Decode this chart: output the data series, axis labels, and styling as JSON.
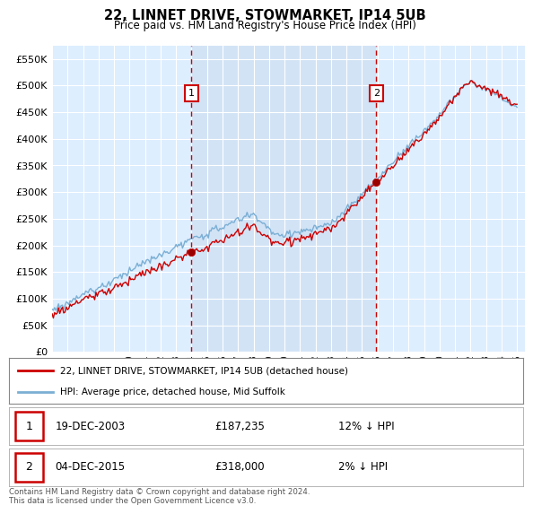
{
  "title": "22, LINNET DRIVE, STOWMARKET, IP14 5UB",
  "subtitle": "Price paid vs. HM Land Registry's House Price Index (HPI)",
  "ylim": [
    0,
    575000
  ],
  "yticks": [
    0,
    50000,
    100000,
    150000,
    200000,
    250000,
    300000,
    350000,
    400000,
    450000,
    500000,
    550000
  ],
  "ytick_labels": [
    "£0",
    "£50K",
    "£100K",
    "£150K",
    "£200K",
    "£250K",
    "£300K",
    "£350K",
    "£400K",
    "£450K",
    "£500K",
    "£550K"
  ],
  "sale1_date": 2004.0,
  "sale1_price": 187235,
  "sale1_label": "1",
  "sale2_date": 2015.92,
  "sale2_price": 318000,
  "sale2_label": "2",
  "line_color_hpi": "#7bafd4",
  "line_color_price": "#cc0000",
  "vline_color": "#cc0000",
  "plot_bg_color": "#ddeeff",
  "shade_bg_color": "#ccddf0",
  "grid_color": "#ffffff",
  "legend1_text": "22, LINNET DRIVE, STOWMARKET, IP14 5UB (detached house)",
  "legend2_text": "HPI: Average price, detached house, Mid Suffolk",
  "footer": "Contains HM Land Registry data © Crown copyright and database right 2024.\nThis data is licensed under the Open Government Licence v3.0."
}
